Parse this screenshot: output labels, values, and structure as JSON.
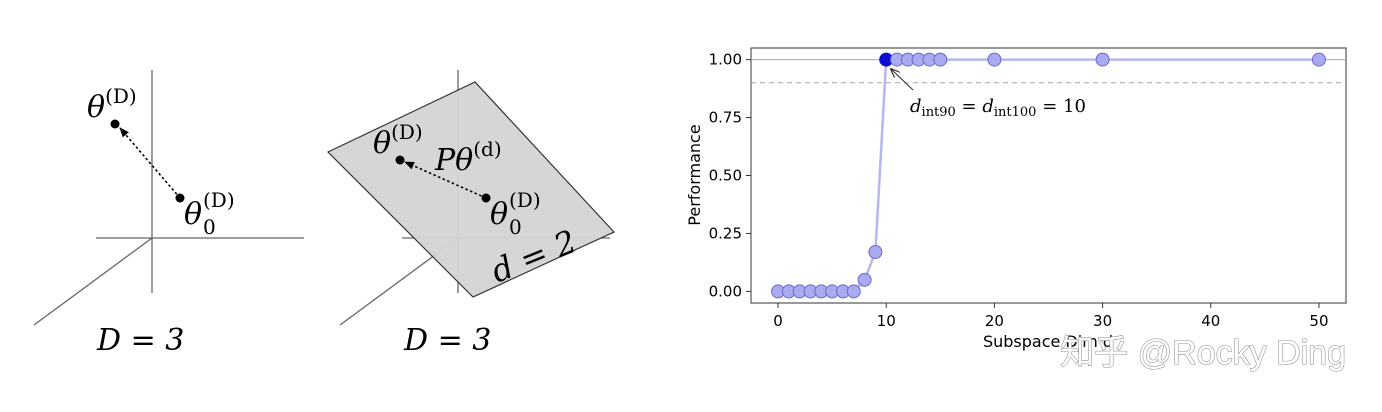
{
  "colors": {
    "axis": "#666666",
    "plane_fill": "#d4d4d4",
    "plane_stroke": "#333333",
    "point": "#000000",
    "series_line": "#b7b7ee",
    "marker_fill": "#aaaaf0",
    "marker_edge": "#6a6acc",
    "highlight": "#0d0dd0",
    "threshold": "#aaaaaa",
    "watermark": "#ffffff"
  },
  "left_diagram": {
    "theta_D_label": "θ",
    "theta_D_sup": "(D)",
    "theta0_label": "θ",
    "theta0_sub": "0",
    "theta0_sup": "(D)",
    "caption": "D = 3"
  },
  "middle_diagram": {
    "theta_D_label": "θ",
    "theta_D_sup": "(D)",
    "projection_label": "Pθ",
    "projection_sup": "(d)",
    "theta0_label": "θ",
    "theta0_sub": "0",
    "theta0_sup": "(D)",
    "plane_label": "d = 2",
    "caption": "D = 3"
  },
  "chart_data": {
    "type": "line",
    "xlabel": "Subspace Dim d",
    "ylabel": "Performance",
    "xlim": [
      -2.5,
      52.5
    ],
    "ylim": [
      -0.05,
      1.05
    ],
    "xticks": [
      "0",
      "10",
      "20",
      "30",
      "40",
      "50"
    ],
    "yticks": [
      "0.00",
      "0.25",
      "0.50",
      "0.75",
      "1.00"
    ],
    "series": [
      {
        "x": [
          0,
          1,
          2,
          3,
          4,
          5,
          6,
          7,
          8,
          9,
          10,
          11,
          12,
          13,
          14,
          15,
          20,
          30,
          50
        ],
        "y": [
          0.0,
          0.0,
          0.0,
          0.0,
          0.0,
          0.0,
          0.0,
          0.0,
          0.05,
          0.17,
          1.0,
          1.0,
          1.0,
          1.0,
          1.0,
          1.0,
          1.0,
          1.0,
          1.0
        ]
      }
    ],
    "highlight_point": {
      "x": 10,
      "y": 1.0
    },
    "reference_lines": [
      {
        "y": 1.0,
        "style": "solid"
      },
      {
        "y": 0.9,
        "style": "dashed"
      }
    ],
    "annotation": {
      "d1": "d",
      "sub1": "int90",
      "eq": " = ",
      "d2": "d",
      "sub2": "int100",
      "tail": " = 10"
    },
    "grid": false
  },
  "watermark": "知乎 @Rocky Ding"
}
